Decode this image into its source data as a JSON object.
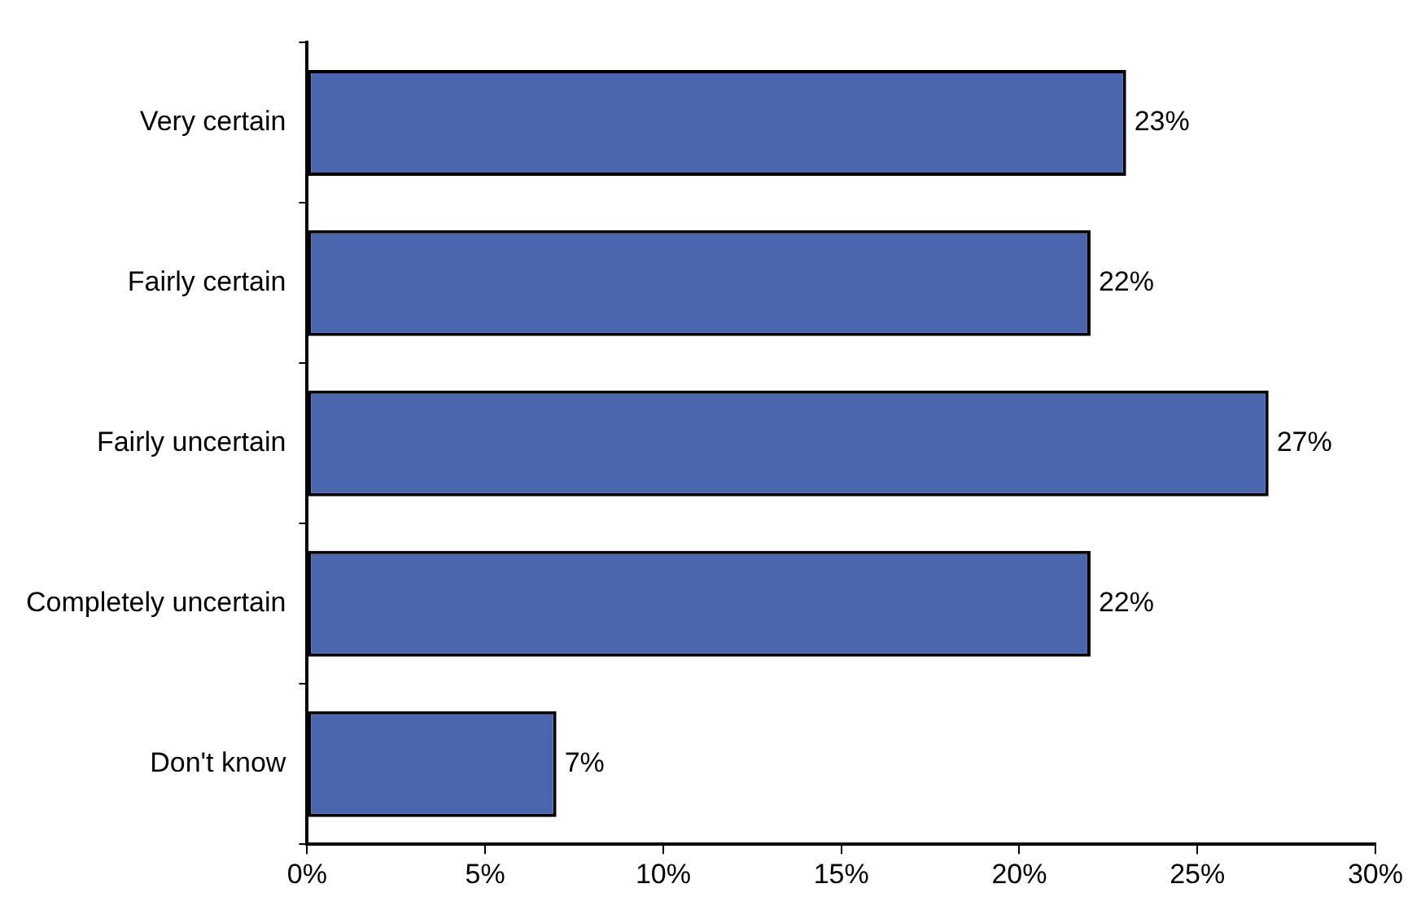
{
  "chart_data": {
    "type": "bar",
    "orientation": "horizontal",
    "categories": [
      "Very certain",
      "Fairly certain",
      "Fairly uncertain",
      "Completely uncertain",
      "Don't know"
    ],
    "values": [
      23,
      22,
      27,
      22,
      7
    ],
    "value_labels": [
      "23%",
      "22%",
      "27%",
      "22%",
      "7%"
    ],
    "color": "#4a66ae",
    "xlim": [
      0,
      30
    ],
    "xticks": [
      {
        "value": 0,
        "label": "0%"
      },
      {
        "value": 5,
        "label": "5%"
      },
      {
        "value": 10,
        "label": "10%"
      },
      {
        "value": 15,
        "label": "15%"
      },
      {
        "value": 20,
        "label": "20%"
      },
      {
        "value": 25,
        "label": "25%"
      },
      {
        "value": 30,
        "label": "30%"
      }
    ],
    "grid": false,
    "legend": false
  }
}
